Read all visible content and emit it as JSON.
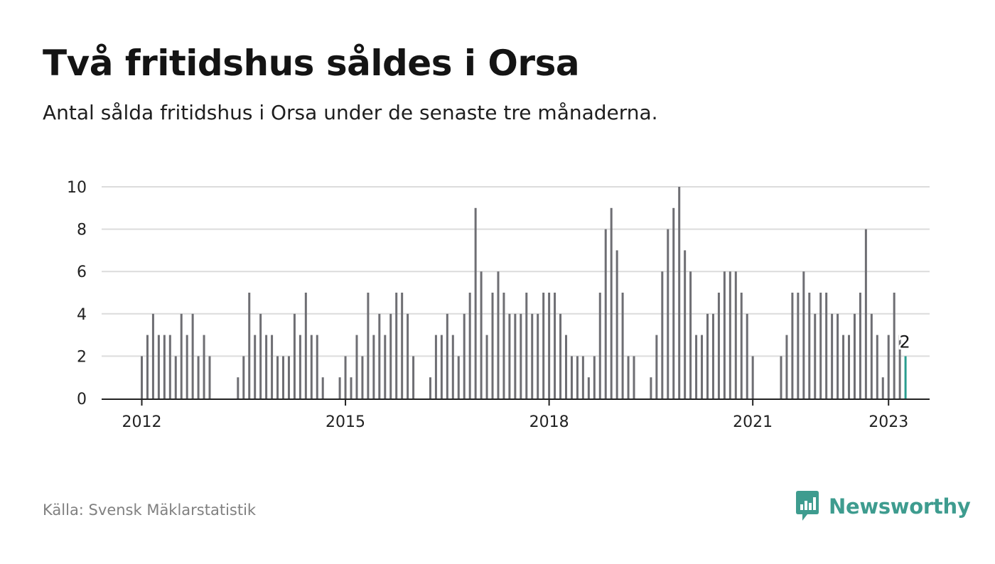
{
  "title": "Två fritidshus såldes i Orsa",
  "subtitle": "Antal sålda fritidshus i Orsa under de senaste tre månaderna.",
  "source": "Källa: Svensk Mäklarstatistik",
  "brand": "Newsworthy",
  "colors": {
    "bar": "#6e6e73",
    "highlight": "#2a9d8f",
    "grid": "#dcdcdc",
    "axis": "#222222",
    "brand": "#3e9c8f"
  },
  "chart_data": {
    "type": "bar",
    "x_start": "2012-01",
    "frequency": "monthly",
    "values": [
      2,
      3,
      4,
      3,
      3,
      3,
      2,
      4,
      3,
      4,
      2,
      3,
      2,
      null,
      null,
      null,
      null,
      1,
      2,
      5,
      3,
      4,
      3,
      3,
      2,
      2,
      2,
      4,
      3,
      5,
      3,
      3,
      1,
      null,
      null,
      1,
      2,
      1,
      3,
      2,
      5,
      3,
      4,
      3,
      4,
      5,
      5,
      4,
      2,
      null,
      null,
      1,
      3,
      3,
      4,
      3,
      2,
      4,
      5,
      9,
      6,
      3,
      5,
      6,
      5,
      4,
      4,
      4,
      5,
      4,
      4,
      5,
      5,
      5,
      4,
      3,
      2,
      2,
      2,
      1,
      2,
      5,
      8,
      9,
      7,
      5,
      2,
      2,
      null,
      null,
      1,
      3,
      6,
      8,
      9,
      10,
      7,
      6,
      3,
      3,
      4,
      4,
      5,
      6,
      6,
      6,
      5,
      4,
      2,
      null,
      null,
      null,
      null,
      2,
      3,
      5,
      5,
      6,
      5,
      4,
      5,
      5,
      4,
      4,
      3,
      3,
      4,
      5,
      8,
      4,
      3,
      1,
      3,
      5,
      3,
      2
    ],
    "highlight_last": true,
    "last_value_label": "2",
    "xticks": [
      "2012",
      "2015",
      "2018",
      "2021",
      "2023"
    ],
    "yticks": [
      "0",
      "2",
      "4",
      "6",
      "8",
      "10"
    ],
    "ylim": [
      0,
      10
    ],
    "grid": true
  }
}
